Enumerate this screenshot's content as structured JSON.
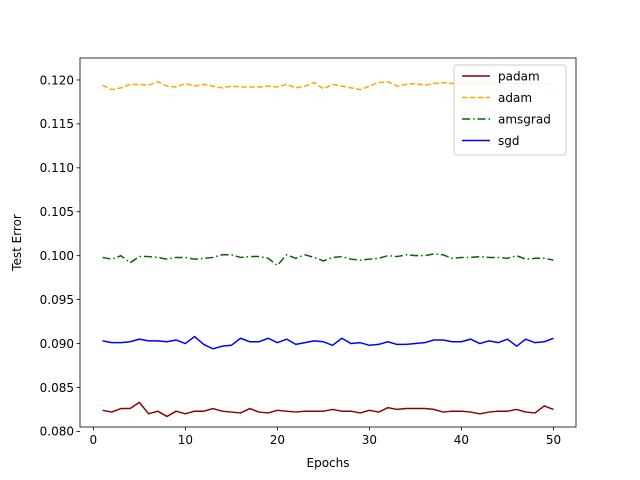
{
  "chart_data": {
    "type": "line",
    "title": "",
    "xlabel": "Epochs",
    "ylabel": "Test Error",
    "xlim": [
      -1.45,
      52.45
    ],
    "ylim": [
      0.0805,
      0.1225
    ],
    "xticks": [
      0,
      10,
      20,
      30,
      40,
      50
    ],
    "xtick_labels": [
      "0",
      "10",
      "20",
      "30",
      "40",
      "50"
    ],
    "yticks": [
      0.08,
      0.085,
      0.09,
      0.095,
      0.1,
      0.105,
      0.11,
      0.115,
      0.12
    ],
    "ytick_labels": [
      "0.080",
      "0.085",
      "0.090",
      "0.095",
      "0.100",
      "0.105",
      "0.110",
      "0.115",
      "0.120"
    ],
    "grid": false,
    "legend_position": "top-right",
    "x": [
      1,
      2,
      3,
      4,
      5,
      6,
      7,
      8,
      9,
      10,
      11,
      12,
      13,
      14,
      15,
      16,
      17,
      18,
      19,
      20,
      21,
      22,
      23,
      24,
      25,
      26,
      27,
      28,
      29,
      30,
      31,
      32,
      33,
      34,
      35,
      36,
      37,
      38,
      39,
      40,
      41,
      42,
      43,
      44,
      45,
      46,
      47,
      48,
      49,
      50
    ],
    "series": [
      {
        "name": "padam",
        "color": "#8b0000",
        "dash": "solid",
        "values": [
          0.0824,
          0.0822,
          0.0826,
          0.0826,
          0.0833,
          0.082,
          0.0823,
          0.0817,
          0.0823,
          0.082,
          0.0823,
          0.0823,
          0.0826,
          0.0823,
          0.0822,
          0.0821,
          0.0826,
          0.0822,
          0.0821,
          0.0824,
          0.0823,
          0.0822,
          0.0823,
          0.0823,
          0.0823,
          0.0825,
          0.0823,
          0.0823,
          0.0821,
          0.0824,
          0.0822,
          0.0827,
          0.0825,
          0.0826,
          0.0826,
          0.0826,
          0.0825,
          0.0822,
          0.0823,
          0.0823,
          0.0822,
          0.082,
          0.0822,
          0.0823,
          0.0823,
          0.0825,
          0.0822,
          0.0821,
          0.0829,
          0.0825
        ]
      },
      {
        "name": "adam",
        "color": "#ffa500",
        "dash": "dashed",
        "values": [
          0.1194,
          0.1189,
          0.1191,
          0.1195,
          0.1195,
          0.1194,
          0.1198,
          0.1193,
          0.1192,
          0.1196,
          0.1193,
          0.1195,
          0.1193,
          0.1191,
          0.1193,
          0.1192,
          0.1192,
          0.1192,
          0.1193,
          0.1192,
          0.1195,
          0.1191,
          0.1193,
          0.1197,
          0.119,
          0.1195,
          0.1193,
          0.1191,
          0.1189,
          0.1193,
          0.1197,
          0.1198,
          0.1193,
          0.1195,
          0.1196,
          0.1194,
          0.1196,
          0.1197,
          0.1196,
          0.1196,
          0.1196,
          0.1196,
          0.1196,
          0.1196,
          0.1196,
          0.1196,
          0.1196,
          0.1196,
          0.1196,
          0.1196
        ]
      },
      {
        "name": "amsgrad",
        "color": "#006400",
        "dash": "dashdot",
        "values": [
          0.0998,
          0.0996,
          0.1,
          0.0992,
          0.0999,
          0.0999,
          0.0998,
          0.0996,
          0.0998,
          0.0998,
          0.0996,
          0.0997,
          0.0998,
          0.1001,
          0.1001,
          0.0998,
          0.0999,
          0.0999,
          0.0997,
          0.0989,
          0.1001,
          0.0997,
          0.1001,
          0.0998,
          0.0994,
          0.0998,
          0.0999,
          0.0996,
          0.0995,
          0.0996,
          0.0997,
          0.1,
          0.0999,
          0.1001,
          0.1,
          0.1,
          0.1002,
          0.1001,
          0.0997,
          0.0998,
          0.0998,
          0.0999,
          0.0998,
          0.0998,
          0.0997,
          0.1,
          0.0996,
          0.0997,
          0.0997,
          0.0995
        ]
      },
      {
        "name": "sgd",
        "color": "#0000ff",
        "dash": "solid",
        "values": [
          0.0903,
          0.0901,
          0.0901,
          0.0902,
          0.0905,
          0.0903,
          0.0903,
          0.0902,
          0.0904,
          0.09,
          0.0908,
          0.0899,
          0.0894,
          0.0897,
          0.0898,
          0.0906,
          0.0902,
          0.0902,
          0.0906,
          0.0901,
          0.0905,
          0.0899,
          0.0901,
          0.0903,
          0.0902,
          0.0898,
          0.0906,
          0.09,
          0.0901,
          0.0898,
          0.0899,
          0.0902,
          0.0899,
          0.0899,
          0.09,
          0.0901,
          0.0904,
          0.0904,
          0.0902,
          0.0902,
          0.0905,
          0.09,
          0.0903,
          0.0901,
          0.0905,
          0.0897,
          0.0905,
          0.0901,
          0.0902,
          0.0906
        ]
      }
    ]
  }
}
